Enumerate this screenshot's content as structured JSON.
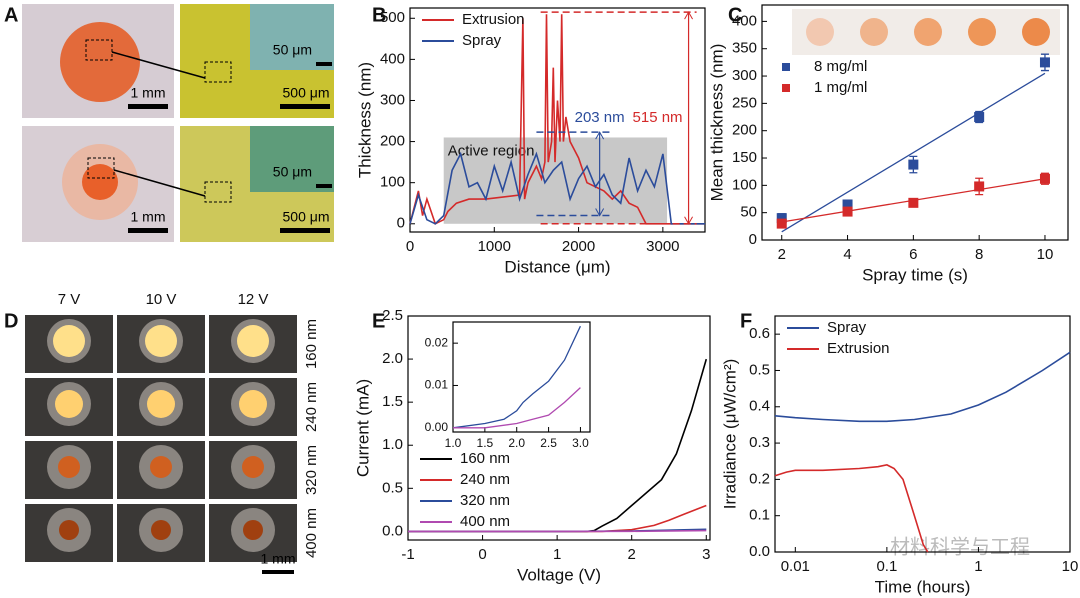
{
  "figure_panels": [
    {
      "panel": "A",
      "scale_bars": [
        "1 mm",
        "50 μm",
        "500 μm",
        "1 mm",
        "50 μm",
        "500 μm"
      ]
    },
    {
      "panel": "D",
      "columns": [
        "7 V",
        "10 V",
        "12 V"
      ],
      "rows": [
        "160 nm",
        "240 nm",
        "320 nm",
        "400 nm"
      ],
      "scale_bar": "1 mm"
    }
  ],
  "chart_data": [
    {
      "panel": "B",
      "type": "line",
      "xlabel": "Distance (μm)",
      "ylabel": "Thickness (nm)",
      "xlim": [
        0,
        3500
      ],
      "xticks": [
        0,
        1000,
        2000,
        3000
      ],
      "ylim": [
        -20,
        525
      ],
      "yticks": [
        0,
        100,
        200,
        300,
        400,
        500
      ],
      "legend": "upper left",
      "shaded_region": {
        "label": "Active region",
        "xlim": [
          400,
          3050
        ],
        "ylim": [
          0,
          210
        ]
      },
      "annotations": [
        {
          "text": "203 nm",
          "color": "#2b4c9b",
          "x": [
            1500,
            2400
          ],
          "y": [
            20,
            223
          ]
        },
        {
          "text": "515 nm",
          "color": "#d42a2a",
          "x": [
            1550,
            3400
          ],
          "y": [
            0,
            515
          ]
        }
      ],
      "series": [
        {
          "name": "Extrusion",
          "color": "#d42a2a",
          "x": [
            0,
            100,
            150,
            200,
            300,
            400,
            450,
            550,
            700,
            900,
            1100,
            1300,
            1340,
            1360,
            1400,
            1500,
            1560,
            1600,
            1620,
            1640,
            1680,
            1700,
            1720,
            1750,
            1780,
            1800,
            1820,
            1850,
            1900,
            2000,
            2100,
            2200,
            2300,
            2400,
            2500,
            2600,
            2700,
            2800,
            3000,
            3200,
            3500
          ],
          "values": [
            0,
            80,
            20,
            60,
            0,
            10,
            30,
            50,
            60,
            60,
            65,
            70,
            500,
            60,
            100,
            140,
            110,
            150,
            510,
            150,
            200,
            380,
            150,
            300,
            200,
            510,
            200,
            260,
            200,
            160,
            100,
            90,
            80,
            60,
            80,
            50,
            40,
            0,
            0,
            0,
            0
          ]
        },
        {
          "name": "Spray",
          "color": "#2b4c9b",
          "x": [
            0,
            100,
            200,
            300,
            400,
            500,
            600,
            700,
            800,
            900,
            1000,
            1100,
            1200,
            1300,
            1400,
            1500,
            1600,
            1700,
            1800,
            1900,
            2000,
            2100,
            2200,
            2300,
            2400,
            2500,
            2600,
            2700,
            2800,
            2900,
            3000,
            3100,
            3200,
            3300,
            3400,
            3500
          ],
          "values": [
            0,
            70,
            10,
            0,
            20,
            130,
            170,
            90,
            100,
            60,
            140,
            80,
            150,
            60,
            120,
            170,
            100,
            130,
            150,
            60,
            110,
            140,
            90,
            120,
            70,
            50,
            160,
            80,
            130,
            90,
            170,
            0,
            0,
            0,
            0,
            0
          ]
        }
      ]
    },
    {
      "panel": "C",
      "type": "scatter",
      "xlabel": "Spray time (s)",
      "ylabel": "Mean thickness (nm)",
      "xlim": [
        1.4,
        10.7
      ],
      "xticks": [
        2,
        4,
        6,
        8,
        10
      ],
      "ylim": [
        0,
        430
      ],
      "yticks": [
        0,
        50,
        100,
        150,
        200,
        250,
        300,
        350,
        400
      ],
      "legend": "upper left",
      "series": [
        {
          "name": "8 mg/ml",
          "color": "#2b4c9b",
          "x": [
            2,
            4,
            6,
            8,
            10
          ],
          "values": [
            40,
            65,
            138,
            225,
            325
          ],
          "errors": [
            8,
            8,
            15,
            10,
            15
          ],
          "fit_x": [
            2,
            10
          ],
          "fit_values": [
            15,
            305
          ]
        },
        {
          "name": "1 mg/ml",
          "color": "#d42a2a",
          "x": [
            2,
            4,
            6,
            8,
            10
          ],
          "values": [
            30,
            52,
            68,
            98,
            112
          ],
          "errors": [
            5,
            7,
            6,
            15,
            10
          ],
          "fit_x": [
            2,
            10
          ],
          "fit_values": [
            33,
            112
          ]
        }
      ]
    },
    {
      "panel": "E",
      "type": "line",
      "xlabel": "Voltage (V)",
      "ylabel": "Current (mA)",
      "xlim": [
        -1,
        3.05
      ],
      "xticks": [
        -1,
        0,
        1,
        2,
        3
      ],
      "ylim": [
        -0.1,
        2.5
      ],
      "yticks": [
        {
          "value": 0,
          "label": "0.0"
        },
        0.5,
        {
          "value": 1,
          "label": "1.0"
        },
        1.5,
        {
          "value": 2,
          "label": "2.0"
        },
        2.5
      ],
      "legend": "lower left",
      "series": [
        {
          "name": "160 nm",
          "color": "#000000",
          "x": [
            -1,
            0,
            1,
            1.4,
            1.5,
            1.6,
            1.8,
            2,
            2.2,
            2.4,
            2.6,
            2.8,
            3
          ],
          "values": [
            0,
            0,
            0,
            0,
            0.01,
            0.06,
            0.15,
            0.3,
            0.45,
            0.6,
            0.9,
            1.4,
            2.0
          ]
        },
        {
          "name": "240 nm",
          "color": "#d42a2a",
          "x": [
            -1,
            0,
            1,
            1.6,
            2,
            2.3,
            2.5,
            2.7,
            3
          ],
          "values": [
            0,
            0,
            0,
            0,
            0.02,
            0.07,
            0.13,
            0.2,
            0.3
          ]
        },
        {
          "name": "320 nm",
          "color": "#2b4c9b",
          "x": [
            -1,
            0,
            1,
            2,
            3
          ],
          "values": [
            0,
            0,
            0,
            0.004,
            0.024
          ]
        },
        {
          "name": "400 nm",
          "color": "#b04ab0",
          "x": [
            -1,
            0,
            1,
            2,
            3
          ],
          "values": [
            0,
            0,
            0,
            0.001,
            0.0095
          ]
        }
      ],
      "inset": {
        "xlim": [
          1,
          3.15
        ],
        "xticks": [
          {
            "value": 1,
            "label": "1.0"
          },
          1.5,
          {
            "value": 2,
            "label": "2.0"
          },
          2.5,
          {
            "value": 3,
            "label": "3.0"
          }
        ],
        "ylim": [
          -0.001,
          0.025
        ],
        "yticks": [
          {
            "value": 0,
            "label": "0.00"
          },
          0.01,
          0.02
        ],
        "series": [
          {
            "color": "#2b4c9b",
            "x": [
              1,
              1.5,
              1.8,
              2,
              2.1,
              2.25,
              2.5,
              2.75,
              3
            ],
            "values": [
              0,
              0.001,
              0.002,
              0.004,
              0.006,
              0.008,
              0.011,
              0.016,
              0.024
            ]
          },
          {
            "color": "#b04ab0",
            "x": [
              1,
              1.5,
              2,
              2.25,
              2.5,
              2.75,
              3
            ],
            "values": [
              0,
              0,
              0.001,
              0.002,
              0.003,
              0.006,
              0.0095
            ]
          }
        ]
      }
    },
    {
      "panel": "F",
      "type": "line",
      "xlabel": "Time (hours)",
      "ylabel": "Irradiance (μW/cm²)",
      "xscale": "log",
      "xlim": [
        0.006,
        10
      ],
      "xticks": [
        0.01,
        0.1,
        1,
        10
      ],
      "ylim": [
        0,
        0.65
      ],
      "yticks": [
        {
          "value": 0,
          "label": "0.0"
        },
        0.1,
        0.2,
        0.3,
        0.4,
        0.5,
        0.6
      ],
      "legend": "upper left",
      "series": [
        {
          "name": "Spray",
          "color": "#2b4c9b",
          "x": [
            0.006,
            0.01,
            0.02,
            0.05,
            0.1,
            0.2,
            0.5,
            1,
            2,
            5,
            10
          ],
          "values": [
            0.375,
            0.37,
            0.365,
            0.36,
            0.36,
            0.365,
            0.38,
            0.405,
            0.44,
            0.5,
            0.55
          ]
        },
        {
          "name": "Extrusion",
          "color": "#d42a2a",
          "x": [
            0.006,
            0.008,
            0.01,
            0.02,
            0.05,
            0.08,
            0.1,
            0.12,
            0.15,
            0.2,
            0.25,
            0.28
          ],
          "values": [
            0.21,
            0.22,
            0.225,
            0.225,
            0.23,
            0.235,
            0.24,
            0.23,
            0.2,
            0.1,
            0.02,
            0
          ]
        }
      ]
    }
  ],
  "watermark": "材料科学与工程"
}
